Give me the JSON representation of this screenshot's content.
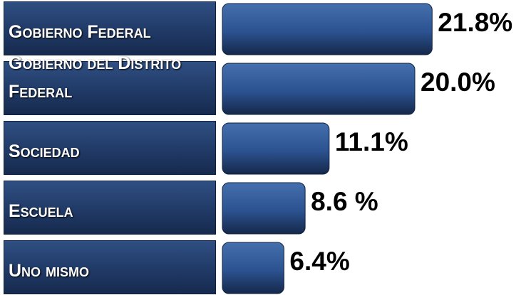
{
  "chart_data": {
    "type": "bar",
    "orientation": "horizontal",
    "categories": [
      "Gobierno Federal",
      "Gobierno del Distrito Federal",
      "Sociedad",
      "Escuela",
      "Uno mismo"
    ],
    "values": [
      21.8,
      20.0,
      11.1,
      8.6,
      6.4
    ],
    "value_labels": [
      "21.8%",
      "20.0%",
      "11.1%",
      "8.6 %",
      "6.4%"
    ],
    "color": "#2c5290",
    "label_color": "#1f3864"
  }
}
